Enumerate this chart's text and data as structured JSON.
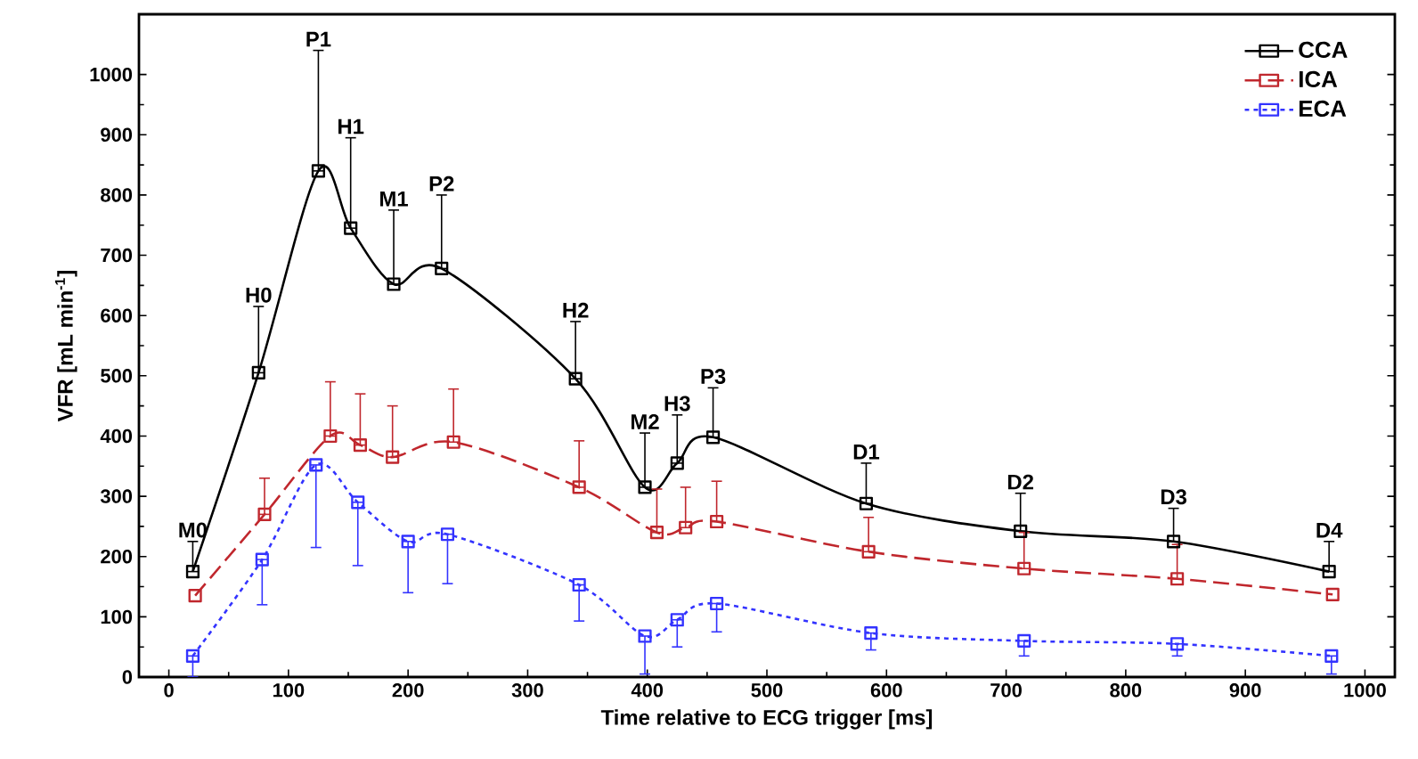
{
  "chart_data": {
    "type": "line",
    "xlabel": "Time relative to ECG trigger [ms]",
    "ylabel": "VFR [mL min$^{-1}$]",
    "xlim": [
      -25,
      1025
    ],
    "xticks": [
      0,
      100,
      200,
      300,
      400,
      500,
      600,
      700,
      800,
      900,
      1000
    ],
    "ylim": [
      0,
      1100
    ],
    "yticks": [
      0,
      100,
      200,
      300,
      400,
      500,
      600,
      700,
      800,
      900,
      1000
    ],
    "grid": false,
    "legend": "top right",
    "marker": "square",
    "series": [
      {
        "name": "CCA",
        "color": "#000000",
        "line_style": "solid",
        "x": [
          20,
          75,
          125,
          152,
          188,
          228,
          340,
          398,
          425,
          455,
          583,
          712,
          840,
          970
        ],
        "values": [
          175,
          505,
          840,
          745,
          652,
          678,
          495,
          315,
          355,
          398,
          288,
          242,
          225,
          175
        ],
        "errors": [
          [
            175,
            225
          ],
          [
            505,
            615
          ],
          [
            840,
            1040
          ],
          [
            745,
            895
          ],
          [
            652,
            775
          ],
          [
            678,
            800
          ],
          [
            495,
            590
          ],
          [
            315,
            405
          ],
          [
            355,
            435
          ],
          [
            398,
            480
          ],
          [
            288,
            355
          ],
          [
            242,
            305
          ],
          [
            225,
            280
          ],
          [
            175,
            225
          ]
        ]
      },
      {
        "name": "ICA",
        "color": "#c0272d",
        "line_style": "dashed",
        "x": [
          22,
          80,
          135,
          160,
          187,
          238,
          343,
          408,
          432,
          458,
          585,
          715,
          843,
          973
        ],
        "values": [
          135,
          270,
          400,
          385,
          365,
          390,
          315,
          240,
          248,
          258,
          208,
          180,
          163,
          137
        ],
        "errors": [
          null,
          [
            270,
            330
          ],
          [
            400,
            490
          ],
          [
            385,
            470
          ],
          [
            365,
            450
          ],
          [
            390,
            478
          ],
          [
            315,
            392
          ],
          [
            240,
            312
          ],
          [
            248,
            315
          ],
          [
            258,
            325
          ],
          [
            208,
            265
          ],
          [
            180,
            240
          ],
          [
            163,
            220
          ],
          null
        ]
      },
      {
        "name": "ECA",
        "color": "#3333ff",
        "line_style": "dotted",
        "x": [
          20,
          78,
          123,
          158,
          200,
          233,
          343,
          398,
          425,
          458,
          587,
          715,
          843,
          972
        ],
        "values": [
          35,
          195,
          352,
          290,
          225,
          237,
          153,
          68,
          95,
          122,
          73,
          60,
          55,
          35
        ],
        "errors": [
          [
            0,
            35
          ],
          [
            120,
            195
          ],
          [
            215,
            352
          ],
          [
            185,
            290
          ],
          [
            140,
            225
          ],
          [
            155,
            237
          ],
          [
            93,
            153
          ],
          [
            5,
            68
          ],
          [
            50,
            95
          ],
          [
            75,
            122
          ],
          [
            45,
            73
          ],
          [
            35,
            60
          ],
          [
            35,
            55
          ],
          [
            5,
            35
          ]
        ]
      }
    ],
    "annotations": [
      {
        "text": "M0",
        "x": 20,
        "y": 225
      },
      {
        "text": "H0",
        "x": 75,
        "y": 615
      },
      {
        "text": "P1",
        "x": 125,
        "y": 1040
      },
      {
        "text": "H1",
        "x": 152,
        "y": 895
      },
      {
        "text": "M1",
        "x": 188,
        "y": 775
      },
      {
        "text": "P2",
        "x": 228,
        "y": 800
      },
      {
        "text": "H2",
        "x": 340,
        "y": 590
      },
      {
        "text": "M2",
        "x": 398,
        "y": 405
      },
      {
        "text": "H3",
        "x": 425,
        "y": 435
      },
      {
        "text": "P3",
        "x": 455,
        "y": 480
      },
      {
        "text": "D1",
        "x": 583,
        "y": 355
      },
      {
        "text": "D2",
        "x": 712,
        "y": 305
      },
      {
        "text": "D3",
        "x": 840,
        "y": 280
      },
      {
        "text": "D4",
        "x": 970,
        "y": 225
      }
    ]
  }
}
